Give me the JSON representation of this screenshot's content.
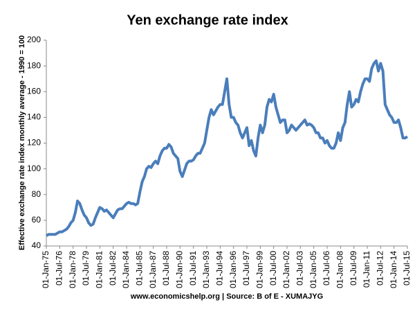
{
  "chart_data": {
    "type": "line",
    "title": "Yen exchange rate index",
    "y_label": "Effective exchange rate index monthly average - 1990 = 100",
    "source": "www.economicshelp.org | Source: B of E - XUMAJYG",
    "categories": [
      "01-Jan-75",
      null,
      null,
      null,
      null,
      null,
      "01-Jul-76",
      null,
      null,
      null,
      null,
      null,
      "01-Jan-78",
      null,
      null,
      null,
      null,
      null,
      "01-Jul-79",
      null,
      null,
      null,
      null,
      null,
      "01-Jan-81",
      null,
      null,
      null,
      null,
      null,
      "01-Jul-82",
      null,
      null,
      null,
      null,
      null,
      "01-Jan-84",
      null,
      null,
      null,
      null,
      null,
      "01-Jul-85",
      null,
      null,
      null,
      null,
      null,
      "01-Jan-87",
      null,
      null,
      null,
      null,
      null,
      "01-Jul-88",
      null,
      null,
      null,
      null,
      null,
      "01-Jan-90",
      null,
      null,
      null,
      null,
      null,
      "01-Jul-91",
      null,
      null,
      null,
      null,
      null,
      "01-Jan-93",
      null,
      null,
      null,
      null,
      null,
      "01-Jul-94",
      null,
      null,
      null,
      null,
      null,
      "01-Jan-96",
      null,
      null,
      null,
      null,
      null,
      "01-Jul-97",
      null,
      null,
      null,
      null,
      null,
      "01-Jan-99",
      null,
      null,
      null,
      null,
      null,
      "01-Jul-00",
      null,
      null,
      null,
      null,
      null,
      "01-Jan-02",
      null,
      null,
      null,
      null,
      null,
      "01-Jul-03",
      null,
      null,
      null,
      null,
      null,
      "01-Jan-05",
      null,
      null,
      null,
      null,
      null,
      "01-Jul-06",
      null,
      null,
      null,
      null,
      null,
      "01-Jan-08",
      null,
      null,
      null,
      null,
      null,
      "01-Jul-09",
      null,
      null,
      null,
      null,
      null,
      "01-Jan-11",
      null,
      null,
      null,
      null,
      null,
      "01-Jul-12",
      null,
      null,
      null,
      null,
      null,
      "01-Jan-14",
      null,
      null,
      null,
      null,
      null,
      "01-Jul-15"
    ],
    "values": [
      48,
      49,
      49,
      49,
      49,
      50,
      51,
      51,
      52,
      53,
      55,
      58,
      60,
      66,
      75,
      73,
      68,
      64,
      62,
      58,
      56,
      57,
      62,
      66,
      70,
      69,
      67,
      68,
      66,
      64,
      62,
      65,
      68,
      69,
      69,
      71,
      73,
      74,
      73,
      73,
      72,
      73,
      82,
      90,
      94,
      100,
      102,
      101,
      104,
      106,
      104,
      110,
      114,
      116,
      116,
      119,
      117,
      112,
      110,
      108,
      98,
      94,
      99,
      104,
      106,
      106,
      107,
      110,
      112,
      112,
      116,
      120,
      130,
      140,
      146,
      142,
      145,
      148,
      150,
      150,
      160,
      170,
      150,
      140,
      140,
      136,
      134,
      128,
      124,
      128,
      132,
      118,
      122,
      114,
      110,
      124,
      134,
      128,
      134,
      148,
      154,
      152,
      158,
      148,
      142,
      136,
      138,
      138,
      128,
      130,
      134,
      132,
      130,
      132,
      134,
      136,
      138,
      134,
      135,
      134,
      132,
      128,
      128,
      124,
      124,
      120,
      122,
      118,
      116,
      116,
      120,
      128,
      122,
      132,
      136,
      150,
      160,
      148,
      150,
      154,
      152,
      160,
      166,
      170,
      170,
      168,
      178,
      182,
      184,
      176,
      182,
      176,
      150,
      146,
      142,
      140,
      136,
      136,
      138,
      132,
      124,
      124,
      125
    ],
    "color": "#4a7ebb",
    "ylim": [
      40,
      200
    ],
    "yticks": [
      40,
      60,
      80,
      100,
      120,
      140,
      160,
      180,
      200
    ],
    "grid": false
  }
}
